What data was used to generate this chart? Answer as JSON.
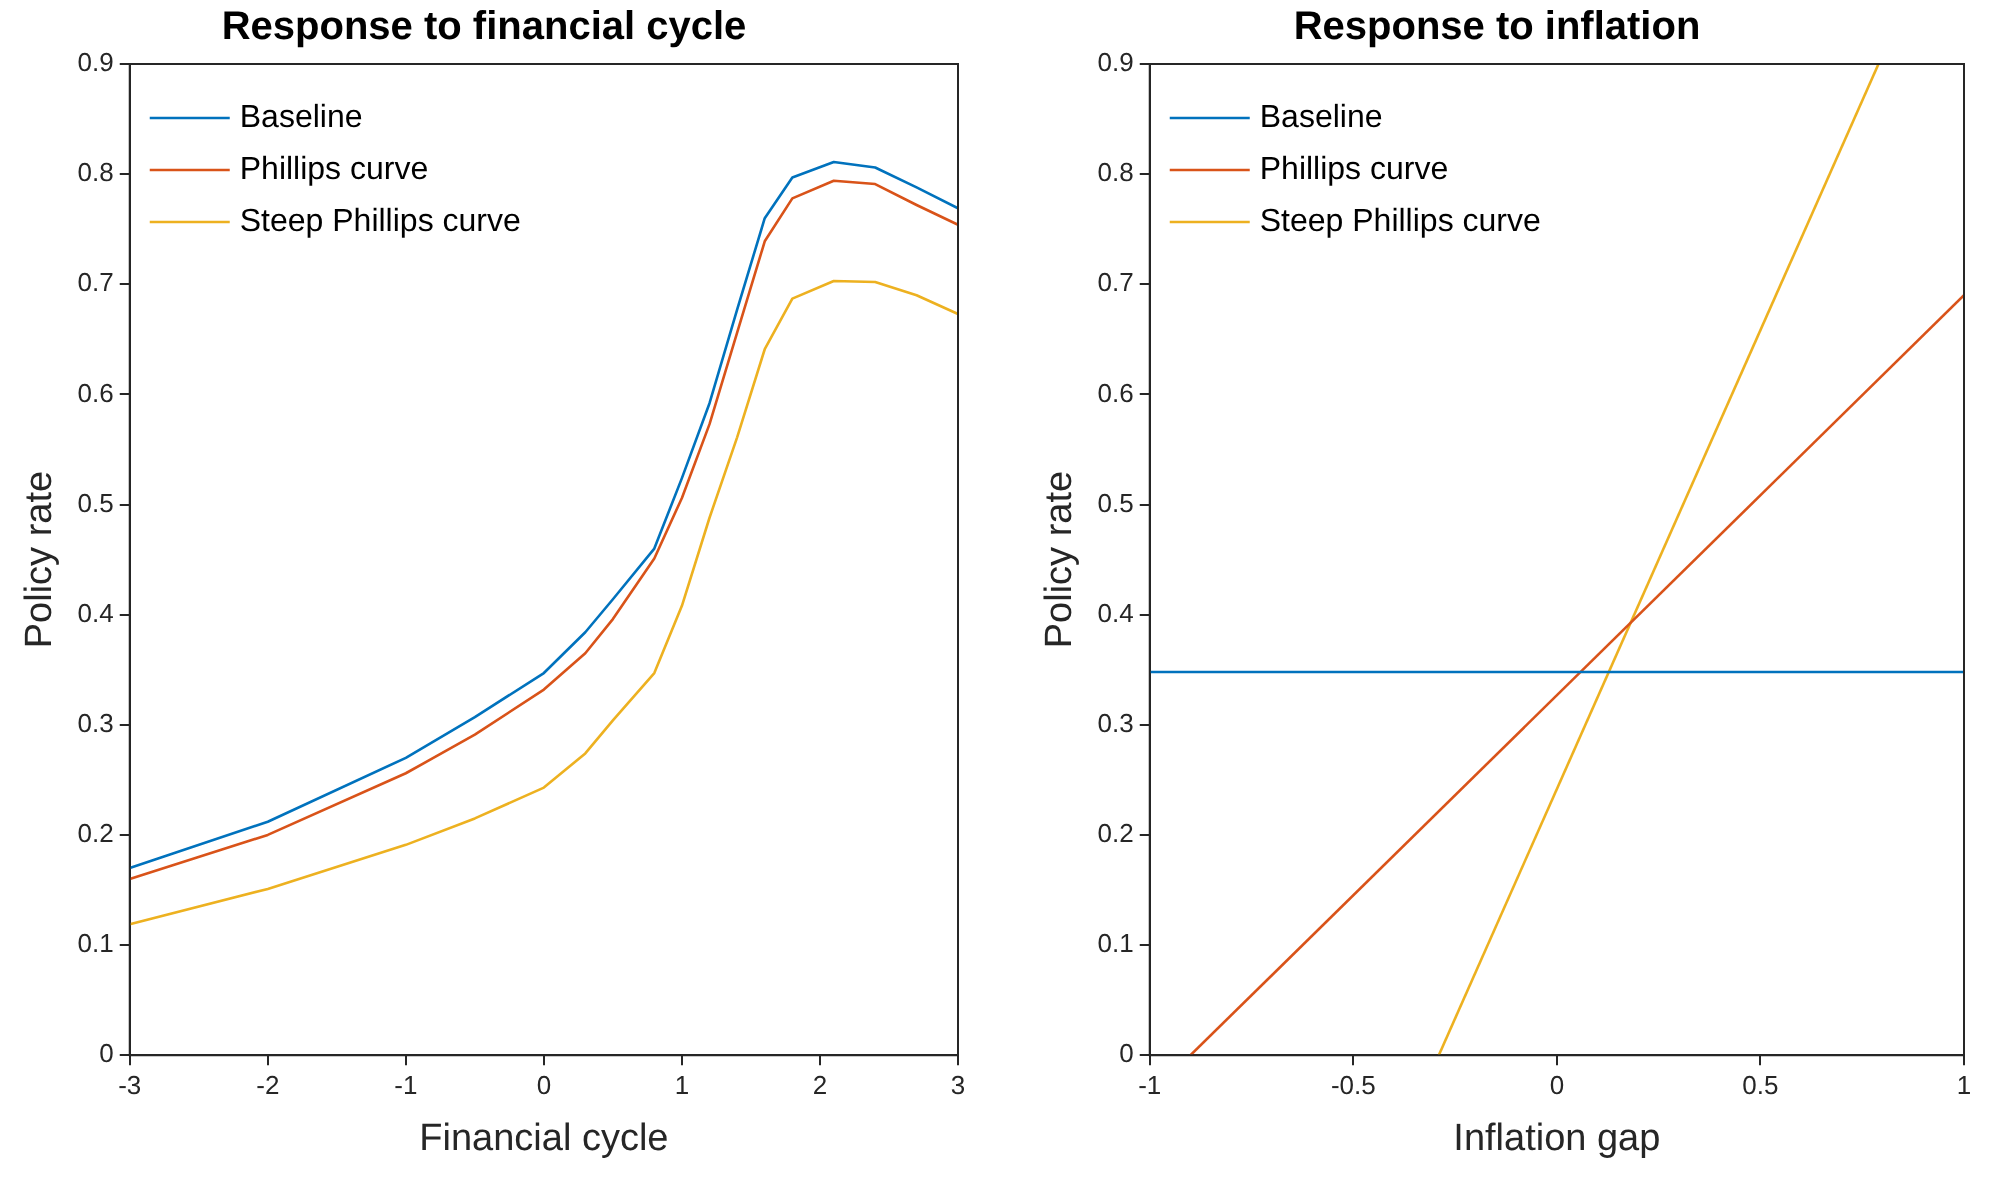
{
  "chart_data": [
    {
      "type": "line",
      "title": "Response to financial cycle",
      "xlabel": "Financial cycle",
      "ylabel": "Policy rate",
      "xlim": [
        -3,
        3
      ],
      "xticks": [
        -3,
        -2,
        -1,
        0,
        1,
        2,
        3
      ],
      "ylim": [
        0,
        0.9
      ],
      "yticks": [
        0,
        0.1,
        0.2,
        0.3,
        0.4,
        0.5,
        0.6,
        0.7,
        0.8,
        0.9
      ],
      "grid": false,
      "legend": "top left",
      "marker": "none",
      "line_style": "solid",
      "x": [
        -3,
        -2,
        -1,
        -0.5,
        0,
        0.3,
        0.5,
        0.8,
        1,
        1.2,
        1.4,
        1.6,
        1.8,
        2.1,
        2.4,
        2.7,
        3
      ],
      "series": [
        {
          "name": "Baseline",
          "color": "#0072bd",
          "values": [
            0.17,
            0.212,
            0.27,
            0.307,
            0.347,
            0.384,
            0.414,
            0.46,
            0.524,
            0.592,
            0.677,
            0.76,
            0.797,
            0.811,
            0.806,
            0.788,
            0.769
          ]
        },
        {
          "name": "Phillips curve",
          "color": "#d95319",
          "values": [
            0.16,
            0.2,
            0.256,
            0.291,
            0.332,
            0.365,
            0.396,
            0.451,
            0.506,
            0.573,
            0.656,
            0.739,
            0.778,
            0.794,
            0.791,
            0.772,
            0.754
          ]
        },
        {
          "name": "Steep Phillips curve",
          "color": "#edb120",
          "values": [
            0.119,
            0.151,
            0.191,
            0.215,
            0.243,
            0.274,
            0.304,
            0.347,
            0.408,
            0.488,
            0.561,
            0.641,
            0.687,
            0.703,
            0.702,
            0.69,
            0.673
          ]
        }
      ]
    },
    {
      "type": "line",
      "title": "Response to inflation",
      "xlabel": "Inflation gap",
      "ylabel": "Policy rate",
      "xlim": [
        -1,
        1
      ],
      "xticks": [
        -1,
        -0.5,
        0,
        0.5,
        1
      ],
      "ylim": [
        0,
        0.9
      ],
      "yticks": [
        0,
        0.1,
        0.2,
        0.3,
        0.4,
        0.5,
        0.6,
        0.7,
        0.8,
        0.9
      ],
      "grid": false,
      "legend": "top left",
      "marker": "none",
      "line_style": "solid",
      "series": [
        {
          "name": "Baseline",
          "color": "#0072bd",
          "x": [
            -1,
            1
          ],
          "values": [
            0.348,
            0.348
          ]
        },
        {
          "name": "Phillips curve",
          "color": "#d95319",
          "x": [
            -0.9,
            1
          ],
          "values": [
            0,
            0.69
          ]
        },
        {
          "name": "Steep Phillips curve",
          "color": "#edb120",
          "x": [
            -0.29,
            0.79
          ],
          "values": [
            0,
            0.9
          ]
        }
      ]
    }
  ]
}
